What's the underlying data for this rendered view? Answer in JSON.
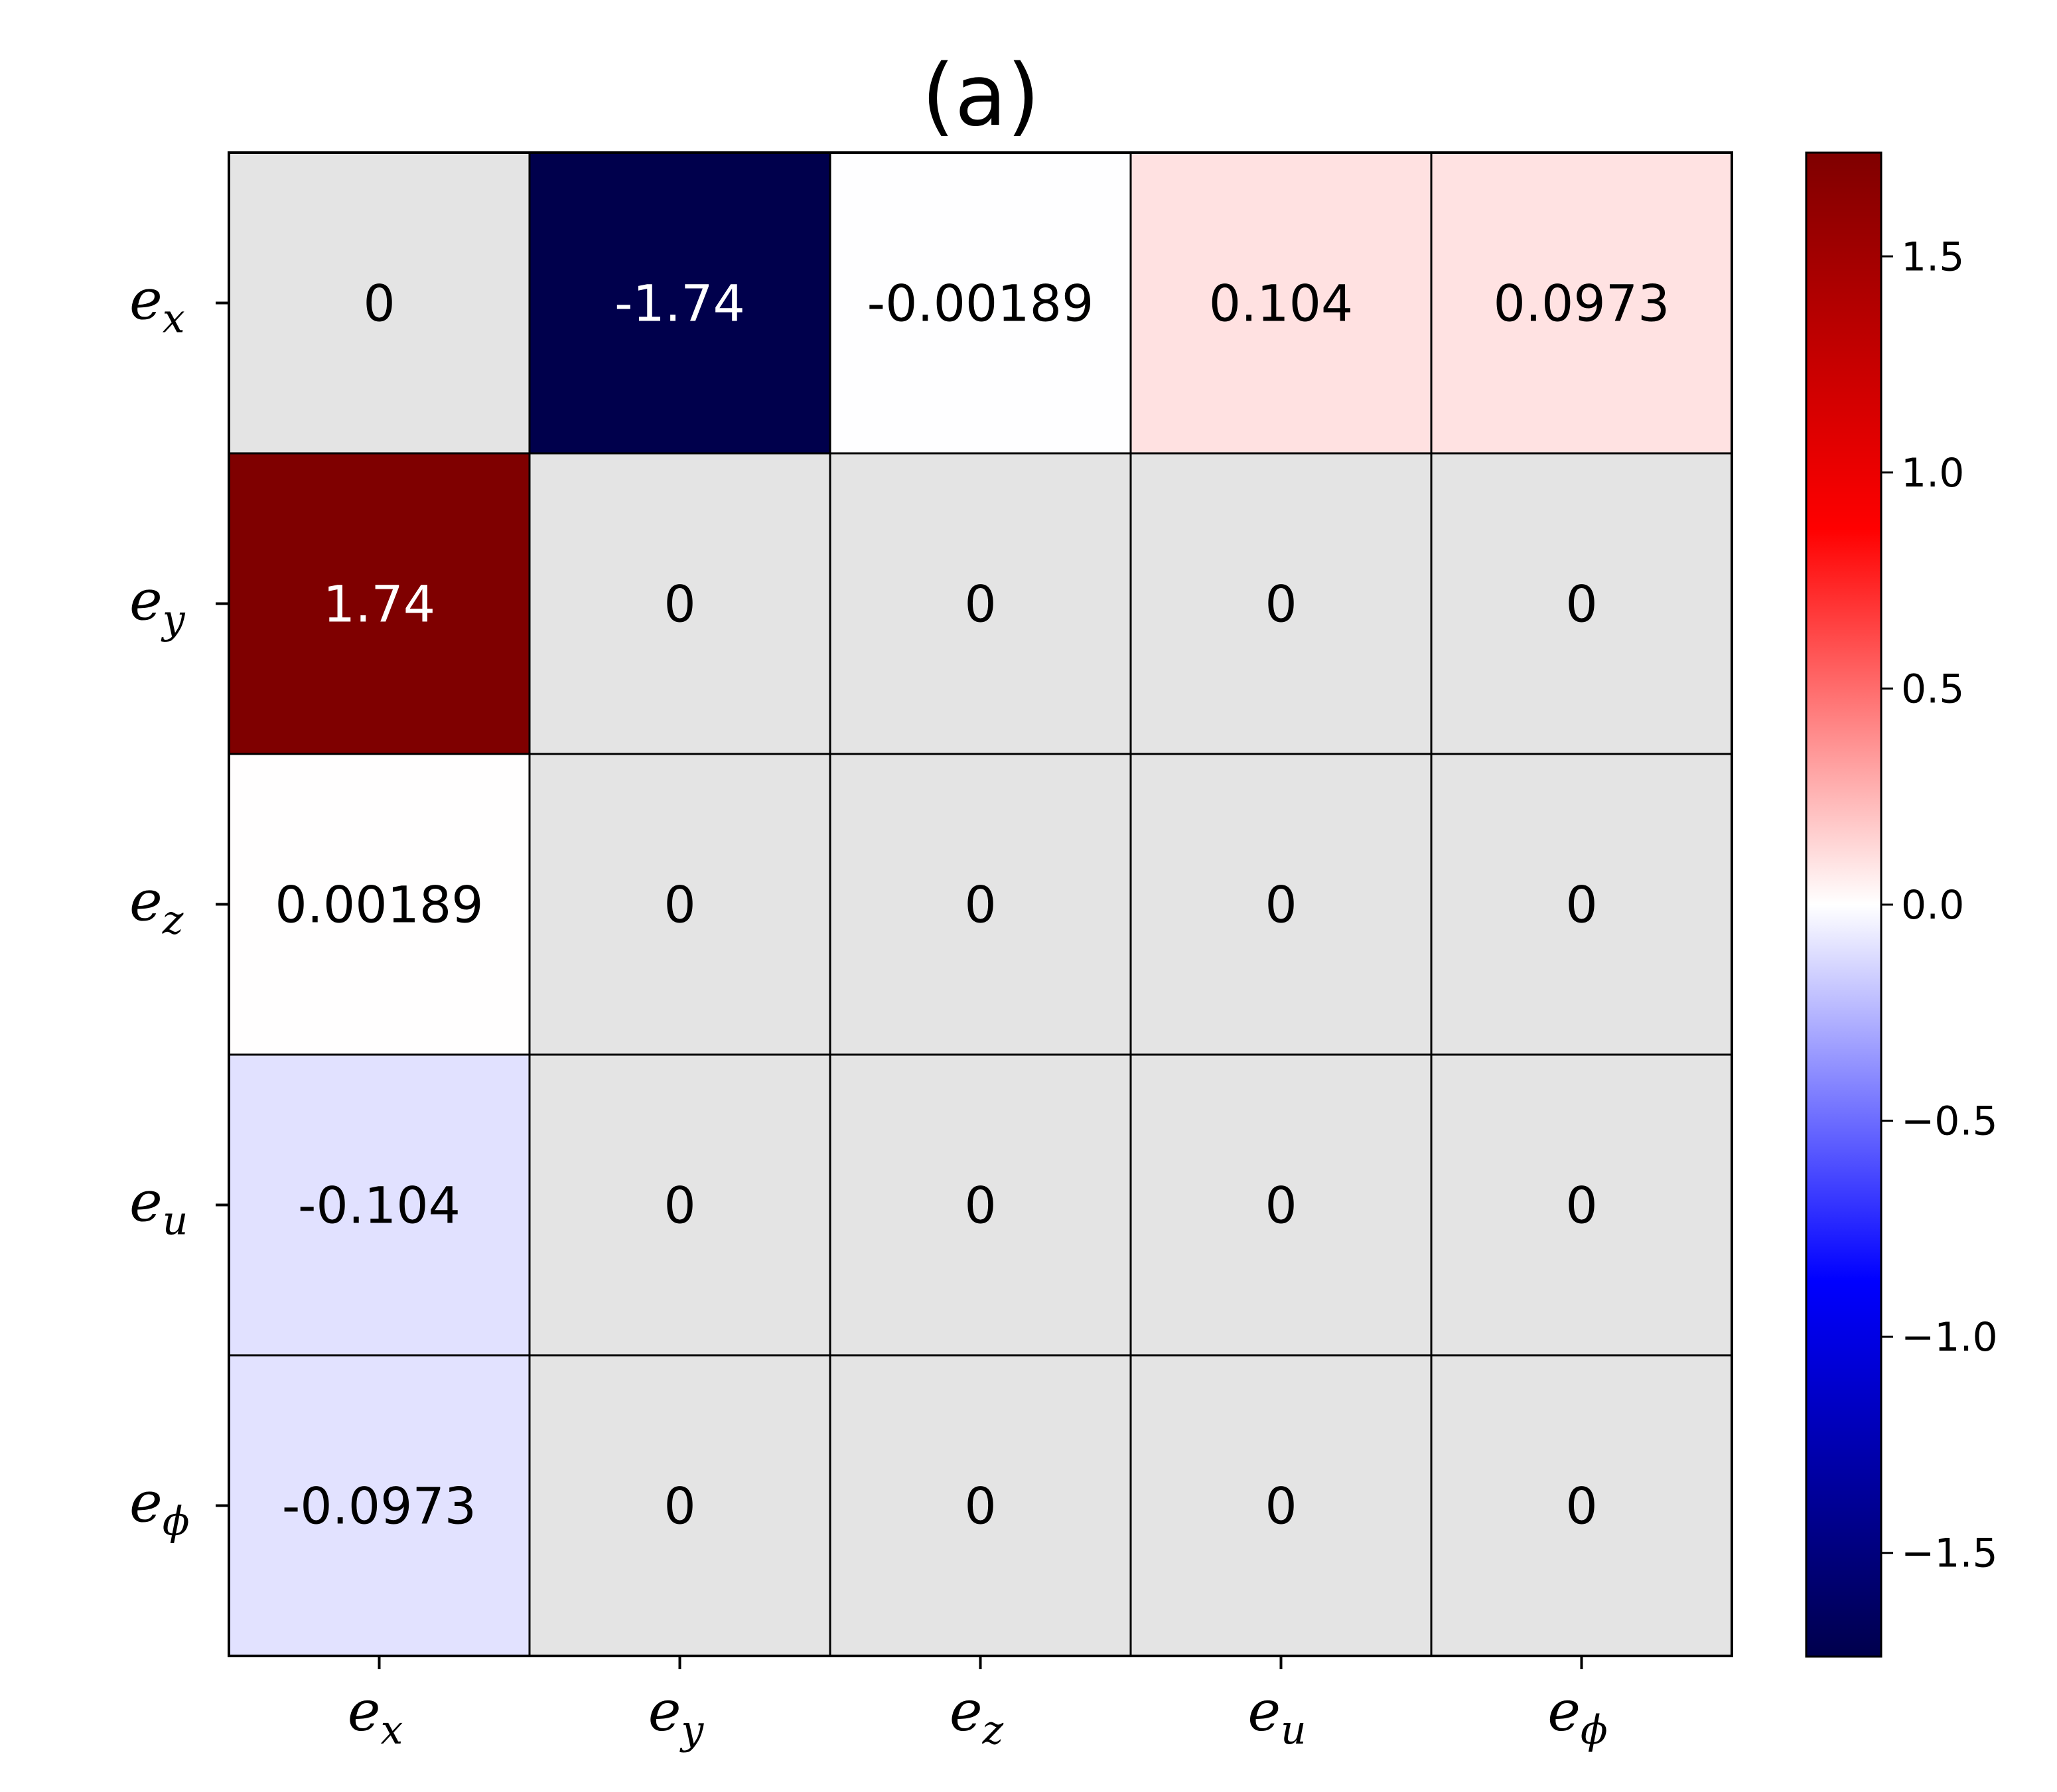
{
  "chart_data": {
    "type": "heatmap",
    "title": "(a)",
    "row_labels": [
      {
        "base": "e",
        "sub": "x"
      },
      {
        "base": "e",
        "sub": "y"
      },
      {
        "base": "e",
        "sub": "z"
      },
      {
        "base": "e",
        "sub": "u"
      },
      {
        "base": "e",
        "sub": "ϕ"
      }
    ],
    "col_labels": [
      {
        "base": "e",
        "sub": "x"
      },
      {
        "base": "e",
        "sub": "y"
      },
      {
        "base": "e",
        "sub": "z"
      },
      {
        "base": "e",
        "sub": "u"
      },
      {
        "base": "e",
        "sub": "ϕ"
      }
    ],
    "values": [
      [
        0,
        -1.74,
        -0.00189,
        0.104,
        0.0973
      ],
      [
        1.74,
        0,
        0,
        0,
        0
      ],
      [
        0.00189,
        0,
        0,
        0,
        0
      ],
      [
        -0.104,
        0,
        0,
        0,
        0
      ],
      [
        -0.0973,
        0,
        0,
        0,
        0
      ]
    ],
    "value_labels": [
      [
        "0",
        "-1.74",
        "-0.00189",
        "0.104",
        "0.0973"
      ],
      [
        "1.74",
        "0",
        "0",
        "0",
        "0"
      ],
      [
        "0.00189",
        "0",
        "0",
        "0",
        "0"
      ],
      [
        "-0.104",
        "0",
        "0",
        "0",
        "0"
      ],
      [
        "-0.0973",
        "0",
        "0",
        "0",
        "0"
      ]
    ],
    "masked_cells": [
      [
        0,
        0
      ],
      [
        1,
        1
      ],
      [
        1,
        2
      ],
      [
        1,
        3
      ],
      [
        1,
        4
      ],
      [
        2,
        1
      ],
      [
        2,
        2
      ],
      [
        2,
        3
      ],
      [
        2,
        4
      ],
      [
        3,
        1
      ],
      [
        3,
        2
      ],
      [
        3,
        3
      ],
      [
        3,
        4
      ],
      [
        4,
        1
      ],
      [
        4,
        2
      ],
      [
        4,
        3
      ],
      [
        4,
        4
      ]
    ],
    "masked_color": "#e4e4e4",
    "colormap": "seismic",
    "colormap_stops": [
      "#00004c",
      "#0000ff",
      "#ffffff",
      "#ff0000",
      "#7f0000"
    ],
    "color_range": [
      -1.74,
      1.74
    ],
    "colorbar_ticks": [
      1.5,
      1.0,
      0.5,
      0.0,
      -0.5,
      -1.0,
      -1.5
    ],
    "colorbar_tick_labels": [
      "1.5",
      "1.0",
      "0.5",
      "0.0",
      "−0.5",
      "−1.0",
      "−1.5"
    ],
    "grid": true
  }
}
